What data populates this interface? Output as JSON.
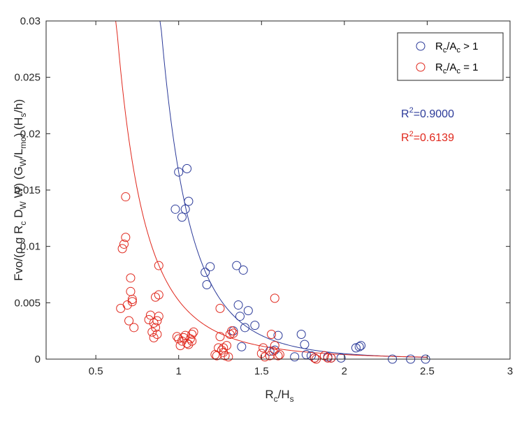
{
  "chart_data": {
    "type": "scatter",
    "xlabel": {
      "base": "R",
      "sub1": "c",
      "mid": "/H",
      "sub2": "s"
    },
    "ylabel": {
      "p1": "Fvo/(ρ g R",
      "s1": "c",
      "p2": " D",
      "s2": "W",
      "p3": " W) (G",
      "s3": "W",
      "p4": "/L",
      "s4": "mo",
      "p5": ") (H",
      "s5": "s",
      "p6": "/h)"
    },
    "xlim": [
      0.2,
      3
    ],
    "ylim": [
      0,
      0.03
    ],
    "x_ticks": [
      0.5,
      1,
      1.5,
      2,
      2.5,
      3
    ],
    "x_tick_labels": [
      "0.5",
      "1",
      "1.5",
      "2",
      "2.5",
      "3"
    ],
    "y_ticks": [
      0,
      0.005,
      0.01,
      0.015,
      0.02,
      0.025,
      0.03
    ],
    "y_tick_labels": [
      "0",
      "0.005",
      "0.01",
      "0.015",
      "0.02",
      "0.025",
      "0.03"
    ],
    "grid": false,
    "legend_position": "top-right",
    "series": [
      {
        "legend": {
          "base": "R",
          "sub1": "c",
          "mid": "/A",
          "sub2": "c",
          "tail": " > 1"
        },
        "color": "#2b3a99",
        "fit": {
          "label_sup": "2",
          "label_base": "R",
          "label_tail": "=0.9000",
          "a": 0.0166,
          "b": -5.1,
          "x_start": 0.82,
          "x_end": 2.5
        },
        "points": [
          [
            0.98,
            0.0133
          ],
          [
            1.0,
            0.0166
          ],
          [
            1.02,
            0.0126
          ],
          [
            1.04,
            0.0133
          ],
          [
            1.05,
            0.0169
          ],
          [
            1.06,
            0.014
          ],
          [
            1.16,
            0.0077
          ],
          [
            1.17,
            0.0066
          ],
          [
            1.19,
            0.0082
          ],
          [
            1.33,
            0.0025
          ],
          [
            1.35,
            0.0083
          ],
          [
            1.36,
            0.0048
          ],
          [
            1.37,
            0.0038
          ],
          [
            1.38,
            0.0011
          ],
          [
            1.39,
            0.0079
          ],
          [
            1.4,
            0.0028
          ],
          [
            1.42,
            0.0043
          ],
          [
            1.46,
            0.003
          ],
          [
            1.55,
            0.0007
          ],
          [
            1.58,
            0.0008
          ],
          [
            1.6,
            0.0021
          ],
          [
            1.7,
            0.0002
          ],
          [
            1.74,
            0.0022
          ],
          [
            1.76,
            0.0013
          ],
          [
            1.77,
            0.0004
          ],
          [
            1.8,
            0.0003
          ],
          [
            1.82,
            0.0001
          ],
          [
            1.9,
            0.0002
          ],
          [
            1.92,
            0.0001
          ],
          [
            1.98,
            0.0001
          ],
          [
            2.07,
            0.001
          ],
          [
            2.09,
            0.0011
          ],
          [
            2.1,
            0.0012
          ],
          [
            2.29,
            0.0
          ],
          [
            2.4,
            0.0
          ],
          [
            2.49,
            0.0
          ]
        ]
      },
      {
        "legend": {
          "base": "R",
          "sub1": "c",
          "mid": "/A",
          "sub2": "c",
          "tail": " = 1"
        },
        "color": "#e0271c",
        "fit": {
          "label_sup": "2",
          "label_base": "R",
          "label_tail": "=0.6139",
          "a": 0.0052,
          "b": -3.7,
          "x_start": 0.5,
          "x_end": 2.5
        },
        "points": [
          [
            0.65,
            0.0045
          ],
          [
            0.66,
            0.0098
          ],
          [
            0.67,
            0.0102
          ],
          [
            0.68,
            0.0108
          ],
          [
            0.68,
            0.0144
          ],
          [
            0.69,
            0.0048
          ],
          [
            0.7,
            0.0034
          ],
          [
            0.71,
            0.0072
          ],
          [
            0.71,
            0.006
          ],
          [
            0.72,
            0.0051
          ],
          [
            0.72,
            0.0053
          ],
          [
            0.73,
            0.0028
          ],
          [
            0.82,
            0.0035
          ],
          [
            0.83,
            0.0039
          ],
          [
            0.84,
            0.0024
          ],
          [
            0.85,
            0.0019
          ],
          [
            0.85,
            0.0032
          ],
          [
            0.86,
            0.0028
          ],
          [
            0.86,
            0.0055
          ],
          [
            0.87,
            0.0034
          ],
          [
            0.87,
            0.0022
          ],
          [
            0.88,
            0.0057
          ],
          [
            0.88,
            0.0038
          ],
          [
            0.88,
            0.0083
          ],
          [
            0.99,
            0.002
          ],
          [
            1.0,
            0.0018
          ],
          [
            1.01,
            0.0012
          ],
          [
            1.02,
            0.0016
          ],
          [
            1.03,
            0.0019
          ],
          [
            1.04,
            0.0021
          ],
          [
            1.05,
            0.0014
          ],
          [
            1.06,
            0.0013
          ],
          [
            1.07,
            0.0018
          ],
          [
            1.08,
            0.0016
          ],
          [
            1.08,
            0.0022
          ],
          [
            1.09,
            0.0024
          ],
          [
            1.22,
            0.0004
          ],
          [
            1.23,
            0.0003
          ],
          [
            1.24,
            0.001
          ],
          [
            1.25,
            0.002
          ],
          [
            1.25,
            0.0045
          ],
          [
            1.26,
            0.0008
          ],
          [
            1.27,
            0.001
          ],
          [
            1.27,
            0.0006
          ],
          [
            1.28,
            0.0003
          ],
          [
            1.29,
            0.0012
          ],
          [
            1.3,
            0.0002
          ],
          [
            1.31,
            0.0022
          ],
          [
            1.32,
            0.0025
          ],
          [
            1.33,
            0.0023
          ],
          [
            1.5,
            0.0005
          ],
          [
            1.51,
            0.001
          ],
          [
            1.52,
            0.0002
          ],
          [
            1.55,
            0.0003
          ],
          [
            1.56,
            0.0022
          ],
          [
            1.57,
            0.0007
          ],
          [
            1.58,
            0.0012
          ],
          [
            1.58,
            0.0054
          ],
          [
            1.6,
            0.0003
          ],
          [
            1.61,
            0.0004
          ],
          [
            1.82,
            0.0001
          ],
          [
            1.83,
            0.0
          ],
          [
            1.88,
            0.0003
          ],
          [
            1.9,
            0.0001
          ],
          [
            1.92,
            0.0001
          ]
        ]
      }
    ]
  }
}
